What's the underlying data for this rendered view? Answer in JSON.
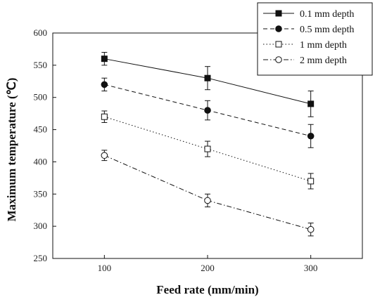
{
  "chart_data": {
    "type": "line",
    "title": "",
    "xlabel": "Feed rate (mm/min)",
    "ylabel": "Maximum temperature (℃)",
    "x": [
      100,
      200,
      300
    ],
    "xlim": [
      50,
      350
    ],
    "ylim": [
      250,
      600
    ],
    "x_ticks": [
      100,
      200,
      300
    ],
    "y_ticks": [
      250,
      300,
      350,
      400,
      450,
      500,
      550,
      600
    ],
    "grid": false,
    "legend_position": "top-right",
    "series": [
      {
        "name": "0.1 mm depth",
        "values": [
          560,
          530,
          490
        ],
        "errors": [
          10,
          18,
          20
        ],
        "marker": "square-filled",
        "line_style": "solid"
      },
      {
        "name": "0.5 mm depth",
        "values": [
          520,
          480,
          440
        ],
        "errors": [
          10,
          15,
          18
        ],
        "marker": "circle-filled",
        "line_style": "dashed"
      },
      {
        "name": "1 mm depth",
        "values": [
          470,
          420,
          370
        ],
        "errors": [
          9,
          12,
          12
        ],
        "marker": "square-open",
        "line_style": "dotted"
      },
      {
        "name": "2 mm depth",
        "values": [
          410,
          340,
          295
        ],
        "errors": [
          8,
          10,
          10
        ],
        "marker": "circle-open",
        "line_style": "dash-dot"
      }
    ]
  }
}
